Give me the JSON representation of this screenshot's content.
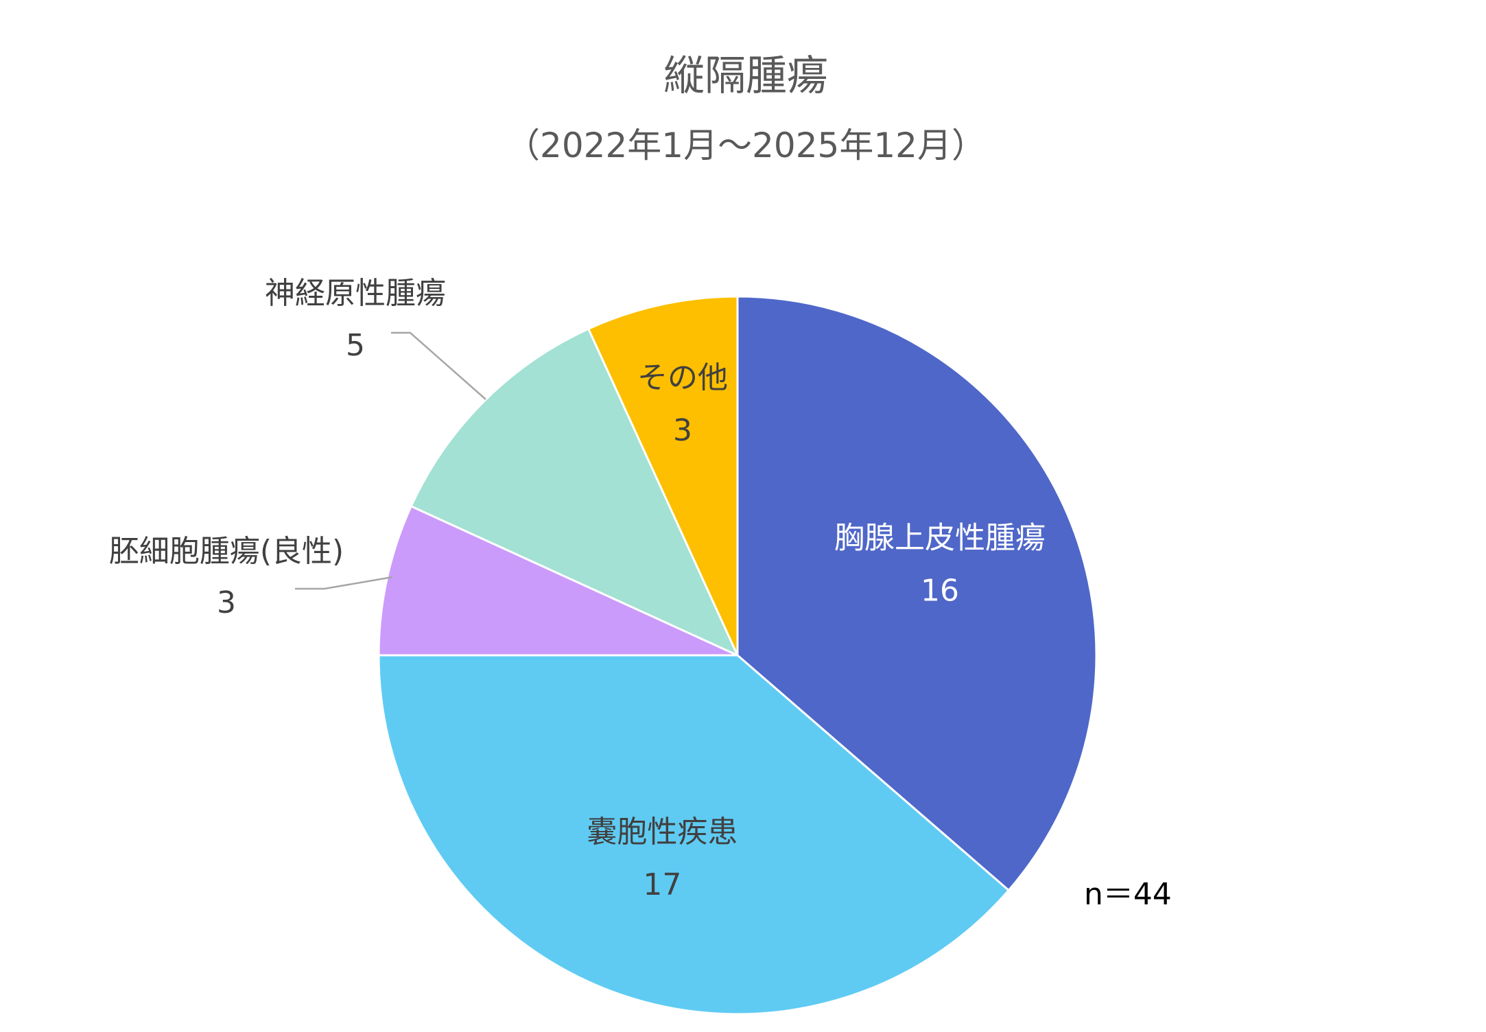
{
  "chart_data": {
    "type": "pie",
    "title": "縦隔腫瘍",
    "subtitle": "（2022年1月～2025年12月）",
    "slices": [
      {
        "label": "胸腺上皮性腫瘍",
        "value": 16,
        "color": "#4F67C8"
      },
      {
        "label": "嚢胞性疾患",
        "value": 17,
        "color": "#5FCBF3"
      },
      {
        "label": "胚細胞腫瘍(良性)",
        "value": 3,
        "color": "#CB9BFB"
      },
      {
        "label": "神経原性腫瘍",
        "value": 5,
        "color": "#A2E1D3"
      },
      {
        "label": "その他",
        "value": 3,
        "color": "#FDBF00"
      }
    ],
    "total_label": "n＝44",
    "start_angle": "12 o'clock",
    "direction": "clockwise",
    "legend": "none (data labels on slices)"
  }
}
